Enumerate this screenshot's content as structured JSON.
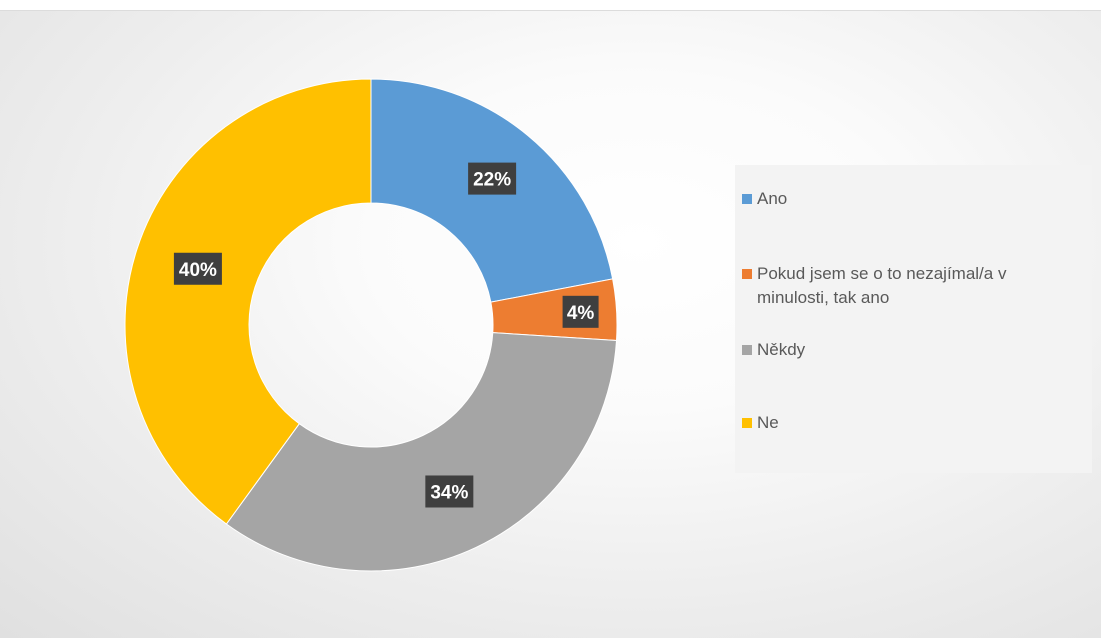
{
  "chart_data": {
    "type": "pie",
    "variant": "donut",
    "title": "",
    "categories": [
      "Ano",
      "Pokud jsem se o to nezajímal/a v minulosti, tak ano",
      "Někdy",
      "Ne"
    ],
    "values": [
      22,
      4,
      34,
      40
    ],
    "data_labels": [
      "22%",
      "4%",
      "34%",
      "40%"
    ],
    "colors": [
      "#5B9BD5",
      "#ED7D31",
      "#A5A5A5",
      "#FFC000"
    ],
    "legend_position": "right",
    "start_angle_deg": 0,
    "direction": "clockwise"
  },
  "legend": {
    "items": [
      {
        "label": "Ano",
        "color": "#5B9BD5"
      },
      {
        "label": "Pokud jsem se o to nezajímal/a v minulosti, tak ano",
        "color": "#ED7D31"
      },
      {
        "label": "Někdy",
        "color": "#A5A5A5"
      },
      {
        "label": "Ne",
        "color": "#FFC000"
      }
    ]
  }
}
